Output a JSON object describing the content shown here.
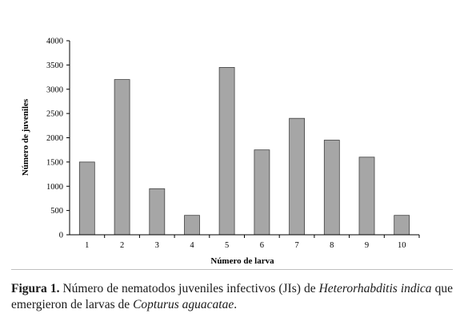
{
  "chart_data": {
    "type": "bar",
    "categories": [
      "1",
      "2",
      "3",
      "4",
      "5",
      "6",
      "7",
      "8",
      "9",
      "10"
    ],
    "values": [
      1500,
      3200,
      950,
      400,
      3450,
      1750,
      2400,
      1950,
      1600,
      400
    ],
    "xlabel": "Número de larva",
    "ylabel": "Número de juveniles",
    "ylim": [
      0,
      4000
    ],
    "yticks": [
      0,
      500,
      1000,
      1500,
      2000,
      2500,
      3000,
      3500,
      4000
    ],
    "bar_color": "#a6a6a6",
    "bar_edge_color": "#404040",
    "grid": false,
    "legend": "none"
  },
  "caption": {
    "label": "Figura 1.",
    "text_1": " Número de nematodos juveniles infectivos (JIs) de ",
    "species_1": "Heterorhabditis indica",
    "text_2": " que emergieron de larvas de ",
    "species_2": "Copturus aguacatae",
    "text_3": "."
  }
}
